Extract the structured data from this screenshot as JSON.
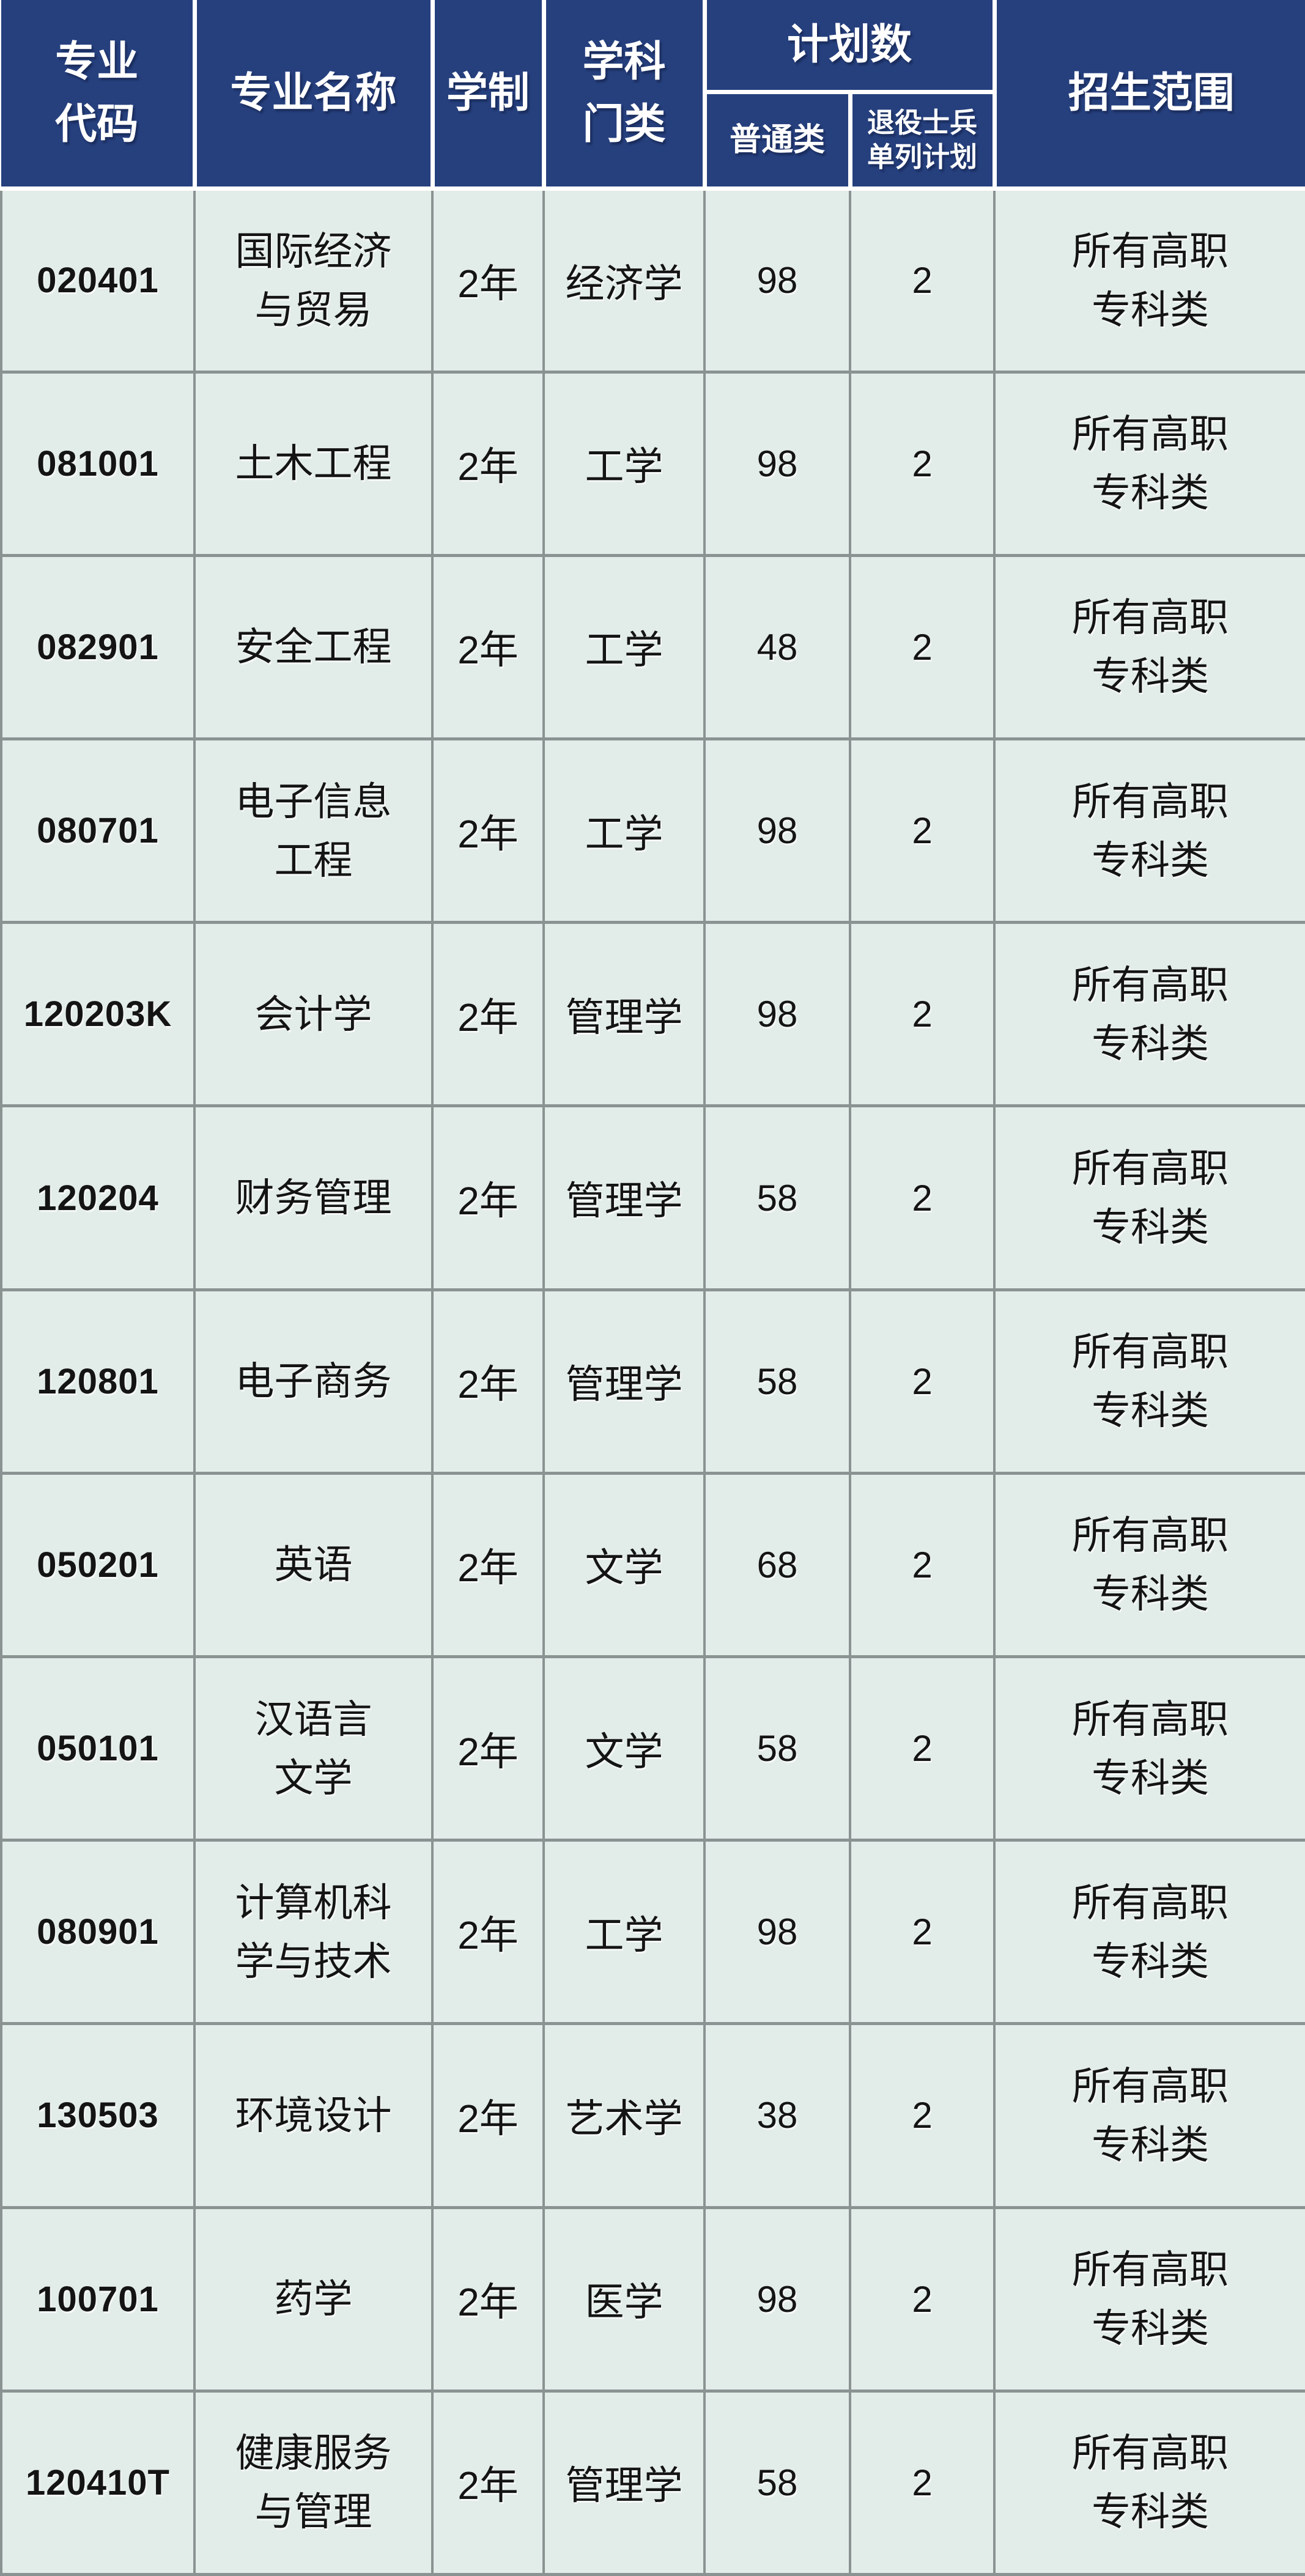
{
  "colors": {
    "header_bg": "#26407E",
    "header_text": "#FFFFFF",
    "cell_bg": "#E2ECE9",
    "grid_line": "#8A9392",
    "cell_text": "#141414"
  },
  "table": {
    "header": {
      "col_code": "专业\n代码",
      "col_name": "专业名称",
      "col_duration": "学制",
      "col_discipline": "学科\n门类",
      "col_plan_group": "计划数",
      "col_plan_regular": "普通类",
      "col_plan_veteran": "退役士兵\n单列计划",
      "col_scope": "招生范围"
    },
    "rows": [
      {
        "code": "020401",
        "name": "国际经济\n与贸易",
        "duration": "2年",
        "discipline": "经济学",
        "regular": "98",
        "veteran": "2",
        "scope": "所有高职\n专科类"
      },
      {
        "code": "081001",
        "name": "土木工程",
        "duration": "2年",
        "discipline": "工学",
        "regular": "98",
        "veteran": "2",
        "scope": "所有高职\n专科类"
      },
      {
        "code": "082901",
        "name": "安全工程",
        "duration": "2年",
        "discipline": "工学",
        "regular": "48",
        "veteran": "2",
        "scope": "所有高职\n专科类"
      },
      {
        "code": "080701",
        "name": "电子信息\n工程",
        "duration": "2年",
        "discipline": "工学",
        "regular": "98",
        "veteran": "2",
        "scope": "所有高职\n专科类"
      },
      {
        "code": "120203K",
        "name": "会计学",
        "duration": "2年",
        "discipline": "管理学",
        "regular": "98",
        "veteran": "2",
        "scope": "所有高职\n专科类"
      },
      {
        "code": "120204",
        "name": "财务管理",
        "duration": "2年",
        "discipline": "管理学",
        "regular": "58",
        "veteran": "2",
        "scope": "所有高职\n专科类"
      },
      {
        "code": "120801",
        "name": "电子商务",
        "duration": "2年",
        "discipline": "管理学",
        "regular": "58",
        "veteran": "2",
        "scope": "所有高职\n专科类"
      },
      {
        "code": "050201",
        "name": "英语",
        "duration": "2年",
        "discipline": "文学",
        "regular": "68",
        "veteran": "2",
        "scope": "所有高职\n专科类"
      },
      {
        "code": "050101",
        "name": "汉语言\n文学",
        "duration": "2年",
        "discipline": "文学",
        "regular": "58",
        "veteran": "2",
        "scope": "所有高职\n专科类"
      },
      {
        "code": "080901",
        "name": "计算机科\n学与技术",
        "duration": "2年",
        "discipline": "工学",
        "regular": "98",
        "veteran": "2",
        "scope": "所有高职\n专科类"
      },
      {
        "code": "130503",
        "name": "环境设计",
        "duration": "2年",
        "discipline": "艺术学",
        "regular": "38",
        "veteran": "2",
        "scope": "所有高职\n专科类"
      },
      {
        "code": "100701",
        "name": "药学",
        "duration": "2年",
        "discipline": "医学",
        "regular": "98",
        "veteran": "2",
        "scope": "所有高职\n专科类"
      },
      {
        "code": "120410T",
        "name": "健康服务\n与管理",
        "duration": "2年",
        "discipline": "管理学",
        "regular": "58",
        "veteran": "2",
        "scope": "所有高职\n专科类"
      }
    ]
  }
}
